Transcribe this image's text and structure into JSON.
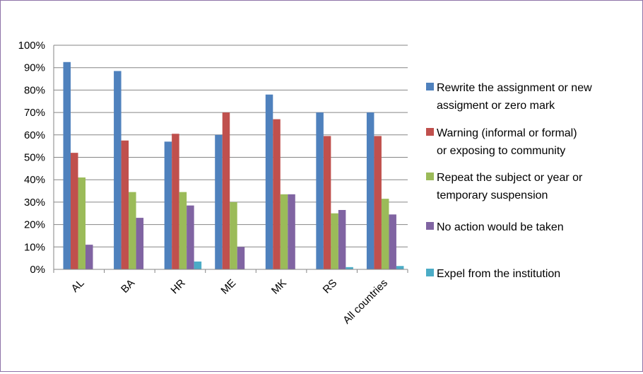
{
  "chart_data": {
    "type": "bar",
    "categories": [
      "AL",
      "BA",
      "HR",
      "ME",
      "MK",
      "RS",
      "All countries"
    ],
    "ylim": [
      0,
      100
    ],
    "y_ticks": [
      "0%",
      "10%",
      "20%",
      "30%",
      "40%",
      "50%",
      "60%",
      "70%",
      "80%",
      "90%",
      "100%"
    ],
    "grid": true,
    "legend_position": "right",
    "series": [
      {
        "name": "Rewrite the assignment or new assigment or zero mark",
        "legend_lines": [
          "Rewrite the assignment or new",
          "assigment or zero mark"
        ],
        "color": "#4f81bd",
        "values": [
          92.5,
          88.5,
          57,
          60,
          78,
          70,
          70
        ]
      },
      {
        "name": "Warning (informal or formal) or exposing to community",
        "legend_lines": [
          "Warning (informal or formal)",
          "or exposing to community"
        ],
        "color": "#c0504d",
        "values": [
          52,
          57.5,
          60.5,
          70,
          67,
          59.5,
          59.5
        ]
      },
      {
        "name": "Repeat the subject or year or temporary suspension",
        "legend_lines": [
          "Repeat the subject or year or",
          "temporary suspension"
        ],
        "color": "#9bbb59",
        "values": [
          41,
          34.5,
          34.5,
          30,
          33.5,
          25,
          31.5
        ]
      },
      {
        "name": "No action would be taken",
        "legend_lines": [
          "No action would be taken"
        ],
        "color": "#8064a2",
        "values": [
          11,
          23,
          28.5,
          10,
          33.5,
          26.5,
          24.5
        ]
      },
      {
        "name": "Expel from the institution",
        "legend_lines": [
          "Expel from the institution"
        ],
        "color": "#4bacc6",
        "values": [
          0,
          0,
          3.5,
          0,
          0,
          1,
          1.5
        ]
      }
    ]
  }
}
